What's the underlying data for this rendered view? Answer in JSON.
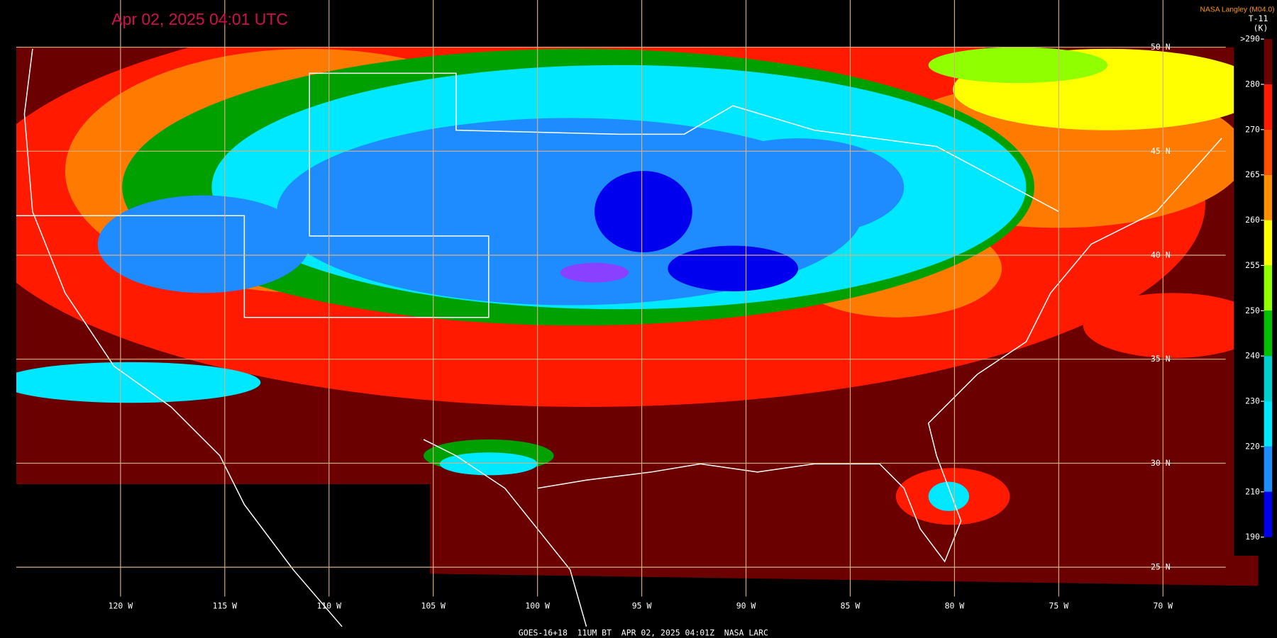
{
  "header": {
    "title": "Apr 02, 2025 04:01 UTC",
    "credit": "NASA Langley (M04.0)",
    "product": "T-11",
    "unit": "(K)"
  },
  "colorbar": {
    "ticks": [
      {
        "value": 290,
        "label": ">290"
      },
      280,
      270,
      265,
      260,
      255,
      250,
      240,
      230,
      220,
      210,
      190
    ]
  },
  "grid": {
    "latitudes": [
      "50 N",
      "45 N",
      "40 N",
      "35 N",
      "30 N",
      "25 N"
    ],
    "longitudes": [
      "120 W",
      "115 W",
      "110 W",
      "105 W",
      "100 W",
      "95 W",
      "90 W",
      "85 W",
      "80 W",
      "75 W",
      "70 W"
    ]
  },
  "footer": "GOES-16+18  11UM BT  APR 02, 2025 04:01Z  NASA LARC"
}
